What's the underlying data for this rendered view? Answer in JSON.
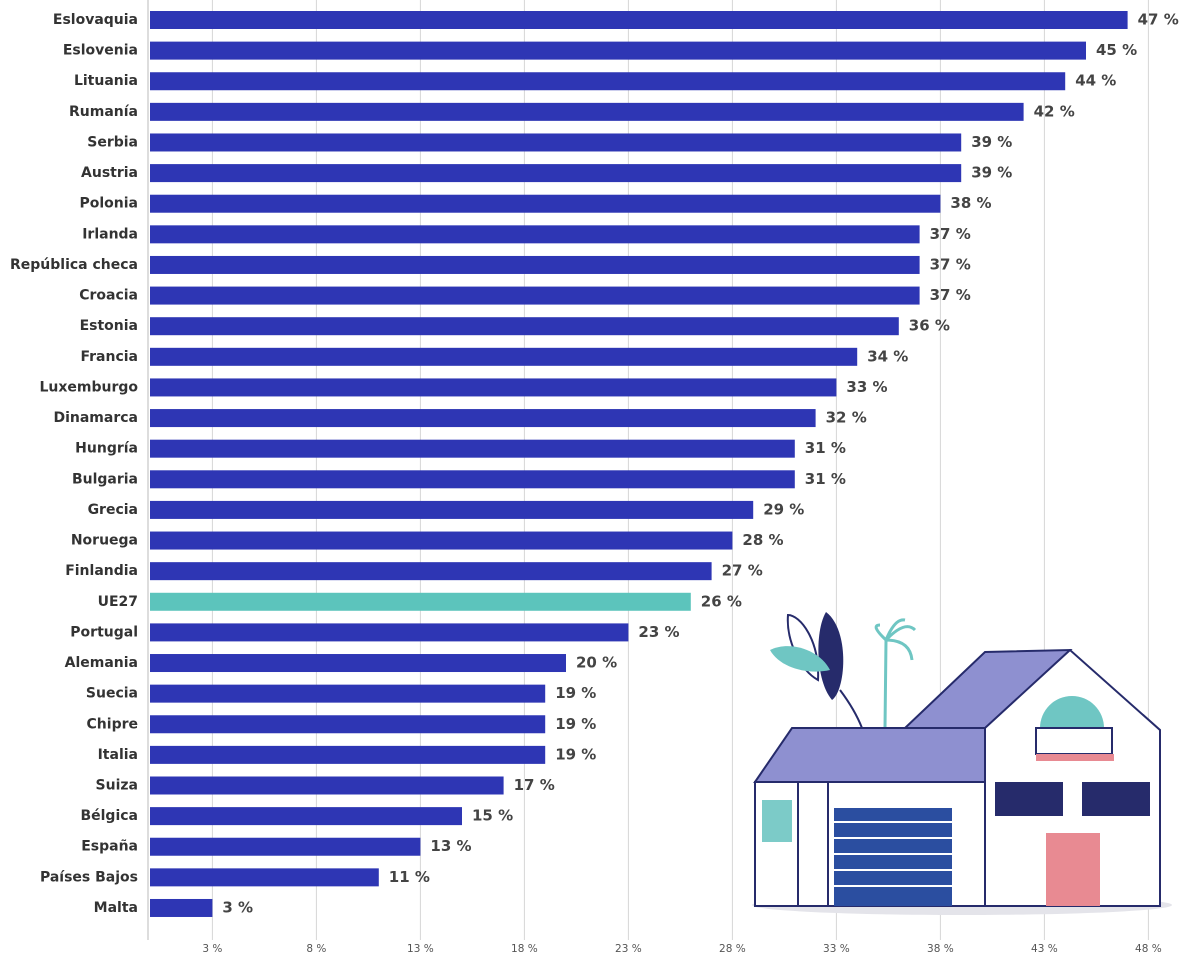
{
  "chart_data": {
    "type": "bar",
    "orientation": "horizontal",
    "categories": [
      "Eslovaquia",
      "Eslovenia",
      "Lituania",
      "Rumanía",
      "Serbia",
      "Austria",
      "Polonia",
      "Irlanda",
      "República checa",
      "Croacia",
      "Estonia",
      "Francia",
      "Luxemburgo",
      "Dinamarca",
      "Hungría",
      "Bulgaria",
      "Grecia",
      "Noruega",
      "Finlandia",
      "UE27",
      "Portugal",
      "Alemania",
      "Suecia",
      "Chipre",
      "Italia",
      "Suiza",
      "Bélgica",
      "España",
      "Países Bajos",
      "Malta"
    ],
    "values": [
      47,
      45,
      44,
      42,
      39,
      39,
      38,
      37,
      37,
      37,
      36,
      34,
      33,
      32,
      31,
      31,
      29,
      28,
      27,
      26,
      23,
      20,
      19,
      19,
      19,
      17,
      15,
      13,
      11,
      3
    ],
    "value_labels": [
      "47 %",
      "45 %",
      "44 %",
      "42 %",
      "39 %",
      "39 %",
      "38 %",
      "37 %",
      "37 %",
      "37 %",
      "36 %",
      "34 %",
      "33 %",
      "32 %",
      "31 %",
      "31 %",
      "29 %",
      "28 %",
      "27 %",
      "26 %",
      "23 %",
      "20 %",
      "19 %",
      "19 %",
      "19 %",
      "17 %",
      "15 %",
      "13 %",
      "11 %",
      "3 %"
    ],
    "colors": [
      "#2e36b4",
      "#2e36b4",
      "#2e36b4",
      "#2e36b4",
      "#2e36b4",
      "#2e36b4",
      "#2e36b4",
      "#2e36b4",
      "#2e36b4",
      "#2e36b4",
      "#2e36b4",
      "#2e36b4",
      "#2e36b4",
      "#2e36b4",
      "#2e36b4",
      "#2e36b4",
      "#2e36b4",
      "#2e36b4",
      "#2e36b4",
      "#5cc4bc",
      "#2e36b4",
      "#2e36b4",
      "#2e36b4",
      "#2e36b4",
      "#2e36b4",
      "#2e36b4",
      "#2e36b4",
      "#2e36b4",
      "#2e36b4",
      "#2e36b4"
    ],
    "xlim": [
      0,
      50
    ],
    "xticks": [
      {
        "value": 3,
        "label": "3 %"
      },
      {
        "value": 8,
        "label": "8 %"
      },
      {
        "value": 13,
        "label": "13 %"
      },
      {
        "value": 18,
        "label": "18 %"
      },
      {
        "value": 23,
        "label": "23 %"
      },
      {
        "value": 28,
        "label": "28 %"
      },
      {
        "value": 33,
        "label": "33 %"
      },
      {
        "value": 38,
        "label": "38 %"
      },
      {
        "value": 43,
        "label": "43 %"
      },
      {
        "value": 48,
        "label": "48 %"
      }
    ],
    "grid": true
  }
}
